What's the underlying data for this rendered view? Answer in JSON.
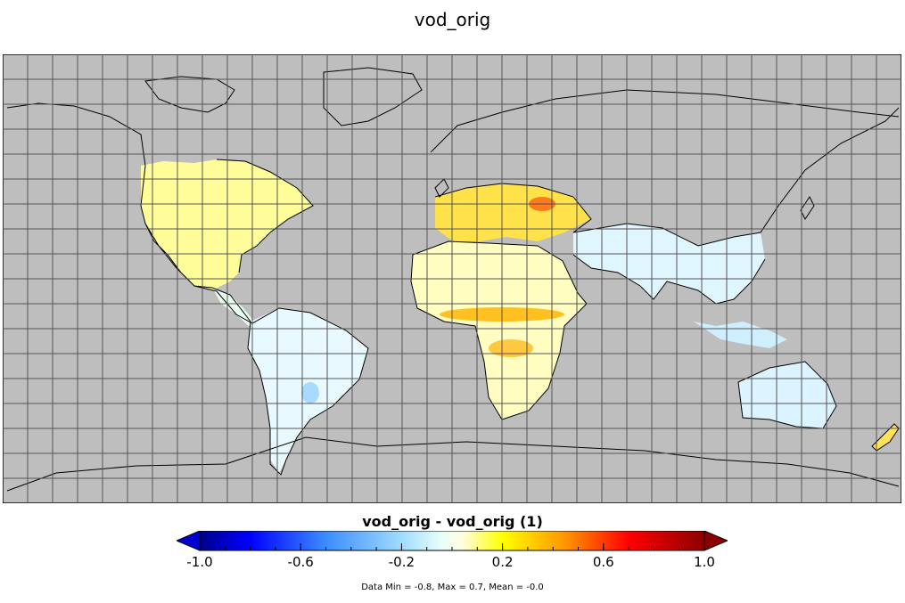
{
  "title": "vod_orig",
  "colorbar": {
    "label": "vod_orig - vod_orig (1)",
    "min": -1.0,
    "max": 1.0,
    "ticks": [
      "-1.0",
      "-0.6",
      "-0.2",
      "0.2",
      "0.6",
      "1.0"
    ],
    "tick_values": [
      -1.0,
      -0.6,
      -0.2,
      0.2,
      0.6,
      1.0
    ],
    "colors": [
      "#00008b",
      "#0000ff",
      "#4aa0ff",
      "#b4e6ff",
      "#ffff00",
      "#ff8c00",
      "#ff0000",
      "#8b0000"
    ],
    "extend": "both"
  },
  "stats": "Data Min = -0.8, Max = 0.7, Mean = -0.0",
  "map": {
    "projection": "equirectangular",
    "ocean_color": "#bebebe",
    "coastline_color": "#000000",
    "grid": true,
    "lon_range": [
      -180,
      180
    ],
    "lat_range": [
      -90,
      90
    ]
  }
}
